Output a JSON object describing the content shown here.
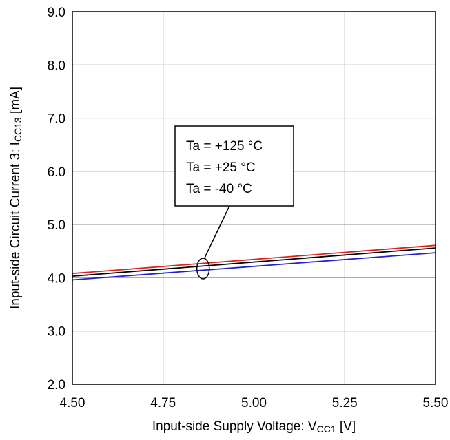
{
  "chart_data": {
    "type": "line",
    "xlabel": "Input-side Supply Voltage: V",
    "xlabel_sub": "CC1",
    "xlabel_unit": " [V]",
    "ylabel": "Input-side Circuit Current 3: I",
    "ylabel_sub": "CC13",
    "ylabel_unit": " [mA]",
    "xlim": [
      4.5,
      5.5
    ],
    "ylim": [
      2.0,
      9.0
    ],
    "x_ticks": [
      4.5,
      4.75,
      5.0,
      5.25,
      5.5
    ],
    "x_tick_labels": [
      "4.50",
      "4.75",
      "5.00",
      "5.25",
      "5.50"
    ],
    "y_ticks": [
      2.0,
      3.0,
      4.0,
      5.0,
      6.0,
      7.0,
      8.0,
      9.0
    ],
    "y_tick_labels": [
      "2.0",
      "3.0",
      "4.0",
      "5.0",
      "6.0",
      "7.0",
      "8.0",
      "9.0"
    ],
    "grid": true,
    "series": [
      {
        "name": "Ta = +125 °C",
        "color": "#e0201c",
        "x": [
          4.5,
          5.5
        ],
        "y": [
          4.08,
          4.61
        ]
      },
      {
        "name": "Ta = +25 °C",
        "color": "#000000",
        "x": [
          4.5,
          5.5
        ],
        "y": [
          4.03,
          4.56
        ]
      },
      {
        "name": "Ta = -40 °C",
        "color": "#1f1fd0",
        "x": [
          4.5,
          5.5
        ],
        "y": [
          3.96,
          4.47
        ]
      }
    ],
    "legend": {
      "placement": "callout",
      "entries": [
        "Ta = +125 °C",
        "Ta = +25 °C",
        "Ta = -40 °C"
      ]
    }
  }
}
